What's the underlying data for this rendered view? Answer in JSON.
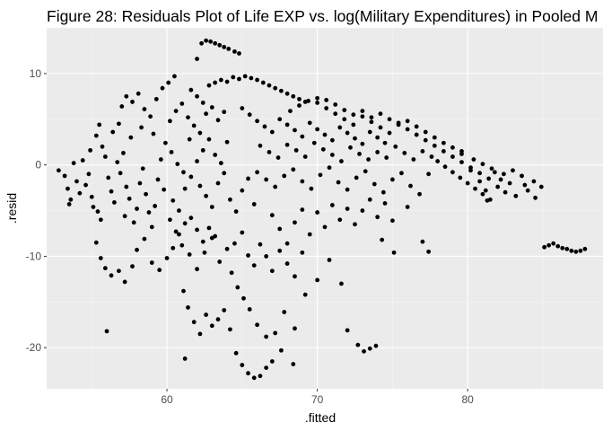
{
  "chart_data": {
    "type": "scatter",
    "title": "Figure 28: Residuals Plot of Life EXP vs. log(Military Expenditures) in Pooled M",
    "xlabel": ".fitted",
    "ylabel": ".resid",
    "xlim": [
      52,
      89
    ],
    "ylim": [
      -24.5,
      15
    ],
    "x_ticks": [
      60,
      70,
      80
    ],
    "y_ticks": [
      -20,
      -10,
      0,
      10
    ],
    "x_tick_labels": [
      "60",
      "70",
      "80"
    ],
    "y_tick_labels": [
      "-20",
      "-10",
      "0",
      "10"
    ],
    "grid": true,
    "panel_background": "#ebebeb",
    "point_color": "#000000",
    "legend": "none",
    "points": [
      [
        52.8,
        -0.6
      ],
      [
        53.2,
        -1.2
      ],
      [
        53.4,
        -2.6
      ],
      [
        53.6,
        -3.8
      ],
      [
        53.8,
        0.2
      ],
      [
        53.5,
        -4.3
      ],
      [
        54.0,
        -1.8
      ],
      [
        54.2,
        -3.1
      ],
      [
        54.4,
        0.5
      ],
      [
        54.6,
        -2.2
      ],
      [
        54.8,
        -1.0
      ],
      [
        55.0,
        -3.5
      ],
      [
        55.1,
        -4.6
      ],
      [
        54.9,
        1.6
      ],
      [
        55.3,
        3.2
      ],
      [
        55.5,
        4.4
      ],
      [
        55.7,
        2.0
      ],
      [
        55.9,
        0.9
      ],
      [
        56.1,
        -1.4
      ],
      [
        55.4,
        -5.1
      ],
      [
        55.6,
        -6.0
      ],
      [
        56.3,
        -2.9
      ],
      [
        56.5,
        -4.1
      ],
      [
        56.7,
        0.3
      ],
      [
        56.9,
        -0.9
      ],
      [
        57.1,
        1.3
      ],
      [
        57.3,
        -2.4
      ],
      [
        57.5,
        -3.7
      ],
      [
        57.2,
        -5.6
      ],
      [
        57.8,
        -6.3
      ],
      [
        58.0,
        -4.8
      ],
      [
        58.2,
        -2.0
      ],
      [
        58.4,
        -0.4
      ],
      [
        58.6,
        -3.2
      ],
      [
        58.8,
        -5.2
      ],
      [
        59.0,
        -6.8
      ],
      [
        59.2,
        -4.5
      ],
      [
        59.4,
        -1.6
      ],
      [
        59.6,
        0.6
      ],
      [
        59.8,
        -2.7
      ],
      [
        57.0,
        6.4
      ],
      [
        57.3,
        7.5
      ],
      [
        57.7,
        6.9
      ],
      [
        58.1,
        7.8
      ],
      [
        58.5,
        6.1
      ],
      [
        58.9,
        5.3
      ],
      [
        59.3,
        7.2
      ],
      [
        59.7,
        8.4
      ],
      [
        60.1,
        9.0
      ],
      [
        60.5,
        9.7
      ],
      [
        56.4,
        3.6
      ],
      [
        56.8,
        4.5
      ],
      [
        57.6,
        3.0
      ],
      [
        58.3,
        4.1
      ],
      [
        59.1,
        3.4
      ],
      [
        59.9,
        2.4
      ],
      [
        60.3,
        1.4
      ],
      [
        60.7,
        0.1
      ],
      [
        61.1,
        -0.8
      ],
      [
        61.5,
        2.8
      ],
      [
        55.3,
        -8.5
      ],
      [
        55.6,
        -10.2
      ],
      [
        55.9,
        -11.3
      ],
      [
        56.3,
        -12.1
      ],
      [
        56.8,
        -11.6
      ],
      [
        57.2,
        -12.8
      ],
      [
        57.7,
        -11.1
      ],
      [
        58.0,
        -9.3
      ],
      [
        58.5,
        -8.1
      ],
      [
        59.0,
        -10.7
      ],
      [
        59.5,
        -11.5
      ],
      [
        60.0,
        -10.2
      ],
      [
        60.4,
        -9.1
      ],
      [
        60.8,
        -7.6
      ],
      [
        61.2,
        -6.4
      ],
      [
        61.6,
        -5.8
      ],
      [
        62.0,
        -7.1
      ],
      [
        62.4,
        -8.4
      ],
      [
        62.8,
        -6.9
      ],
      [
        63.2,
        -7.8
      ],
      [
        56.0,
        -18.2
      ],
      [
        61.1,
        -13.8
      ],
      [
        61.4,
        -15.6
      ],
      [
        61.8,
        -17.2
      ],
      [
        62.2,
        -18.5
      ],
      [
        62.6,
        -16.4
      ],
      [
        63.0,
        -17.6
      ],
      [
        63.4,
        -16.9
      ],
      [
        63.8,
        -15.9
      ],
      [
        64.2,
        -18.0
      ],
      [
        61.2,
        -21.2
      ],
      [
        64.6,
        -20.6
      ],
      [
        65.0,
        -21.9
      ],
      [
        65.4,
        -22.8
      ],
      [
        65.8,
        -23.3
      ],
      [
        66.2,
        -23.1
      ],
      [
        66.6,
        -22.2
      ],
      [
        67.0,
        -21.5
      ],
      [
        67.6,
        -20.3
      ],
      [
        68.4,
        -21.8
      ],
      [
        64.3,
        -11.8
      ],
      [
        64.7,
        -13.4
      ],
      [
        65.1,
        -14.6
      ],
      [
        65.5,
        -15.8
      ],
      [
        66.0,
        -17.5
      ],
      [
        66.6,
        -18.8
      ],
      [
        67.2,
        -18.4
      ],
      [
        67.8,
        -16.1
      ],
      [
        68.5,
        -17.9
      ],
      [
        69.2,
        -14.2
      ],
      [
        70.0,
        -12.6
      ],
      [
        70.8,
        -10.4
      ],
      [
        71.6,
        -13.0
      ],
      [
        72.0,
        -18.1
      ],
      [
        72.7,
        -19.7
      ],
      [
        73.1,
        -20.4
      ],
      [
        73.5,
        -20.1
      ],
      [
        73.9,
        -19.8
      ],
      [
        74.3,
        -8.2
      ],
      [
        75.1,
        -9.6
      ],
      [
        62.3,
        13.3
      ],
      [
        62.6,
        13.6
      ],
      [
        62.9,
        13.5
      ],
      [
        63.2,
        13.3
      ],
      [
        63.5,
        13.1
      ],
      [
        63.8,
        12.9
      ],
      [
        64.1,
        12.7
      ],
      [
        64.5,
        12.4
      ],
      [
        64.8,
        12.2
      ],
      [
        62.0,
        11.6
      ],
      [
        61.6,
        8.2
      ],
      [
        62.0,
        7.5
      ],
      [
        62.4,
        6.8
      ],
      [
        62.8,
        8.7
      ],
      [
        63.2,
        9.0
      ],
      [
        63.6,
        9.3
      ],
      [
        64.0,
        9.1
      ],
      [
        64.4,
        9.6
      ],
      [
        64.8,
        9.4
      ],
      [
        65.2,
        9.7
      ],
      [
        65.6,
        9.5
      ],
      [
        66.0,
        9.3
      ],
      [
        66.4,
        9.0
      ],
      [
        66.8,
        8.7
      ],
      [
        67.2,
        8.4
      ],
      [
        67.6,
        8.1
      ],
      [
        68.0,
        7.8
      ],
      [
        68.4,
        7.5
      ],
      [
        68.8,
        7.2
      ],
      [
        69.2,
        6.9
      ],
      [
        65.0,
        6.2
      ],
      [
        65.5,
        5.5
      ],
      [
        66.0,
        4.8
      ],
      [
        66.5,
        4.2
      ],
      [
        67.0,
        3.6
      ],
      [
        67.5,
        5.0
      ],
      [
        68.0,
        4.4
      ],
      [
        68.5,
        3.8
      ],
      [
        69.0,
        3.1
      ],
      [
        69.5,
        4.6
      ],
      [
        70.0,
        3.9
      ],
      [
        70.5,
        3.3
      ],
      [
        71.0,
        2.7
      ],
      [
        71.5,
        4.1
      ],
      [
        72.0,
        3.5
      ],
      [
        72.5,
        2.9
      ],
      [
        73.0,
        2.3
      ],
      [
        73.5,
        3.6
      ],
      [
        74.0,
        3.0
      ],
      [
        74.5,
        2.4
      ],
      [
        66.2,
        2.1
      ],
      [
        66.8,
        1.4
      ],
      [
        67.4,
        0.8
      ],
      [
        68.0,
        2.2
      ],
      [
        68.6,
        1.6
      ],
      [
        69.2,
        0.9
      ],
      [
        69.8,
        2.4
      ],
      [
        70.4,
        1.7
      ],
      [
        71.0,
        1.1
      ],
      [
        71.6,
        0.4
      ],
      [
        72.2,
        1.9
      ],
      [
        72.8,
        1.2
      ],
      [
        73.4,
        0.6
      ],
      [
        74.0,
        1.4
      ],
      [
        74.6,
        0.8
      ],
      [
        75.2,
        2.0
      ],
      [
        75.8,
        1.3
      ],
      [
        76.4,
        0.6
      ],
      [
        77.0,
        1.5
      ],
      [
        77.6,
        0.9
      ],
      [
        70.0,
        6.8
      ],
      [
        70.6,
        6.2
      ],
      [
        71.2,
        5.6
      ],
      [
        71.8,
        5.0
      ],
      [
        72.4,
        4.4
      ],
      [
        73.0,
        5.3
      ],
      [
        73.6,
        4.7
      ],
      [
        74.2,
        4.1
      ],
      [
        74.8,
        3.5
      ],
      [
        75.4,
        4.6
      ],
      [
        76.0,
        3.9
      ],
      [
        76.6,
        3.3
      ],
      [
        77.2,
        2.7
      ],
      [
        77.8,
        2.1
      ],
      [
        78.4,
        1.5
      ],
      [
        79.0,
        0.9
      ],
      [
        79.6,
        0.3
      ],
      [
        80.2,
        -0.3
      ],
      [
        80.8,
        -0.9
      ],
      [
        81.4,
        -1.5
      ],
      [
        78.0,
        0.4
      ],
      [
        78.5,
        -0.2
      ],
      [
        79.0,
        -0.8
      ],
      [
        79.5,
        -1.4
      ],
      [
        80.0,
        -2.0
      ],
      [
        80.5,
        -2.6
      ],
      [
        81.0,
        -3.2
      ],
      [
        81.5,
        -3.8
      ],
      [
        82.0,
        -2.4
      ],
      [
        82.5,
        -3.0
      ],
      [
        80.2,
        -0.6
      ],
      [
        80.8,
        -1.8
      ],
      [
        81.2,
        -2.8
      ],
      [
        81.8,
        -0.8
      ],
      [
        82.2,
        -1.6
      ],
      [
        82.8,
        -2.0
      ],
      [
        83.2,
        -3.4
      ],
      [
        83.6,
        -1.2
      ],
      [
        84.0,
        -2.8
      ],
      [
        84.5,
        -3.6
      ],
      [
        79.6,
        1.2
      ],
      [
        80.4,
        0.6
      ],
      [
        81.0,
        0.1
      ],
      [
        81.6,
        -0.4
      ],
      [
        82.4,
        -1.0
      ],
      [
        83.0,
        -0.6
      ],
      [
        83.8,
        -2.2
      ],
      [
        84.4,
        -1.8
      ],
      [
        84.9,
        -2.4
      ],
      [
        81.3,
        -3.9
      ],
      [
        66.0,
        -0.8
      ],
      [
        66.6,
        -1.6
      ],
      [
        67.2,
        -2.4
      ],
      [
        67.8,
        -1.2
      ],
      [
        68.4,
        -0.5
      ],
      [
        69.0,
        -1.8
      ],
      [
        69.6,
        -2.6
      ],
      [
        70.2,
        -1.1
      ],
      [
        70.8,
        -0.3
      ],
      [
        71.4,
        -1.9
      ],
      [
        72.0,
        -2.7
      ],
      [
        72.6,
        -1.4
      ],
      [
        73.2,
        -0.7
      ],
      [
        73.8,
        -2.1
      ],
      [
        74.4,
        -3.0
      ],
      [
        75.0,
        -1.6
      ],
      [
        75.6,
        -0.9
      ],
      [
        76.2,
        -2.3
      ],
      [
        76.8,
        -3.2
      ],
      [
        77.4,
        -1.0
      ],
      [
        62.2,
        -2.3
      ],
      [
        62.6,
        -3.4
      ],
      [
        63.0,
        -4.6
      ],
      [
        63.4,
        -2.0
      ],
      [
        63.8,
        -0.9
      ],
      [
        64.2,
        -3.8
      ],
      [
        64.6,
        -5.1
      ],
      [
        65.0,
        -2.8
      ],
      [
        65.4,
        -1.5
      ],
      [
        65.8,
        -4.3
      ],
      [
        60.4,
        -3.9
      ],
      [
        60.8,
        -5.0
      ],
      [
        61.2,
        -2.6
      ],
      [
        61.6,
        -1.3
      ],
      [
        62.0,
        0.4
      ],
      [
        62.4,
        1.6
      ],
      [
        62.8,
        2.8
      ],
      [
        63.2,
        1.1
      ],
      [
        63.6,
        0.2
      ],
      [
        64.0,
        2.5
      ],
      [
        60.2,
        4.8
      ],
      [
        60.6,
        5.9
      ],
      [
        61.0,
        6.7
      ],
      [
        61.4,
        5.2
      ],
      [
        61.8,
        4.3
      ],
      [
        62.2,
        3.5
      ],
      [
        62.6,
        5.6
      ],
      [
        63.0,
        6.3
      ],
      [
        63.4,
        4.9
      ],
      [
        63.8,
        5.8
      ],
      [
        67.0,
        -5.5
      ],
      [
        67.5,
        -7.0
      ],
      [
        68.0,
        -8.6
      ],
      [
        68.5,
        -6.3
      ],
      [
        69.0,
        -4.9
      ],
      [
        69.5,
        -7.6
      ],
      [
        70.0,
        -5.2
      ],
      [
        70.5,
        -6.8
      ],
      [
        71.0,
        -4.4
      ],
      [
        71.5,
        -6.0
      ],
      [
        72.0,
        -4.8
      ],
      [
        72.5,
        -6.5
      ],
      [
        73.0,
        -5.0
      ],
      [
        73.5,
        -3.8
      ],
      [
        74.0,
        -5.7
      ],
      [
        74.5,
        -4.2
      ],
      [
        75.0,
        -6.1
      ],
      [
        76.0,
        -4.6
      ],
      [
        77.0,
        -8.4
      ],
      [
        77.4,
        -9.5
      ],
      [
        60.2,
        -6.0
      ],
      [
        60.6,
        -7.3
      ],
      [
        61.0,
        -8.8
      ],
      [
        61.5,
        -9.8
      ],
      [
        62.0,
        -11.4
      ],
      [
        62.5,
        -9.6
      ],
      [
        63.0,
        -8.0
      ],
      [
        63.5,
        -10.6
      ],
      [
        64.0,
        -9.2
      ],
      [
        64.5,
        -8.6
      ],
      [
        65.0,
        -7.4
      ],
      [
        65.4,
        -9.9
      ],
      [
        65.8,
        -11.0
      ],
      [
        66.2,
        -8.7
      ],
      [
        66.6,
        -10.0
      ],
      [
        67.0,
        -11.6
      ],
      [
        67.5,
        -9.4
      ],
      [
        68.0,
        -10.8
      ],
      [
        68.5,
        -12.2
      ],
      [
        69.0,
        -9.6
      ],
      [
        85.1,
        -9.0
      ],
      [
        85.4,
        -8.8
      ],
      [
        85.7,
        -8.6
      ],
      [
        86.0,
        -8.9
      ],
      [
        86.3,
        -9.1
      ],
      [
        86.6,
        -9.2
      ],
      [
        86.9,
        -9.4
      ],
      [
        87.2,
        -9.5
      ],
      [
        87.5,
        -9.4
      ],
      [
        87.8,
        -9.2
      ],
      [
        68.2,
        5.9
      ],
      [
        68.8,
        6.5
      ],
      [
        69.4,
        7.0
      ],
      [
        70.0,
        7.3
      ],
      [
        70.6,
        7.1
      ],
      [
        71.2,
        6.6
      ],
      [
        71.8,
        6.0
      ],
      [
        72.4,
        5.5
      ],
      [
        73.0,
        5.9
      ],
      [
        73.6,
        5.2
      ],
      [
        74.2,
        5.6
      ],
      [
        74.8,
        5.0
      ],
      [
        75.4,
        4.4
      ],
      [
        76.0,
        4.8
      ],
      [
        76.6,
        4.2
      ],
      [
        77.2,
        3.6
      ],
      [
        77.8,
        3.0
      ],
      [
        78.4,
        2.4
      ],
      [
        79.0,
        1.9
      ],
      [
        79.6,
        1.5
      ]
    ]
  }
}
